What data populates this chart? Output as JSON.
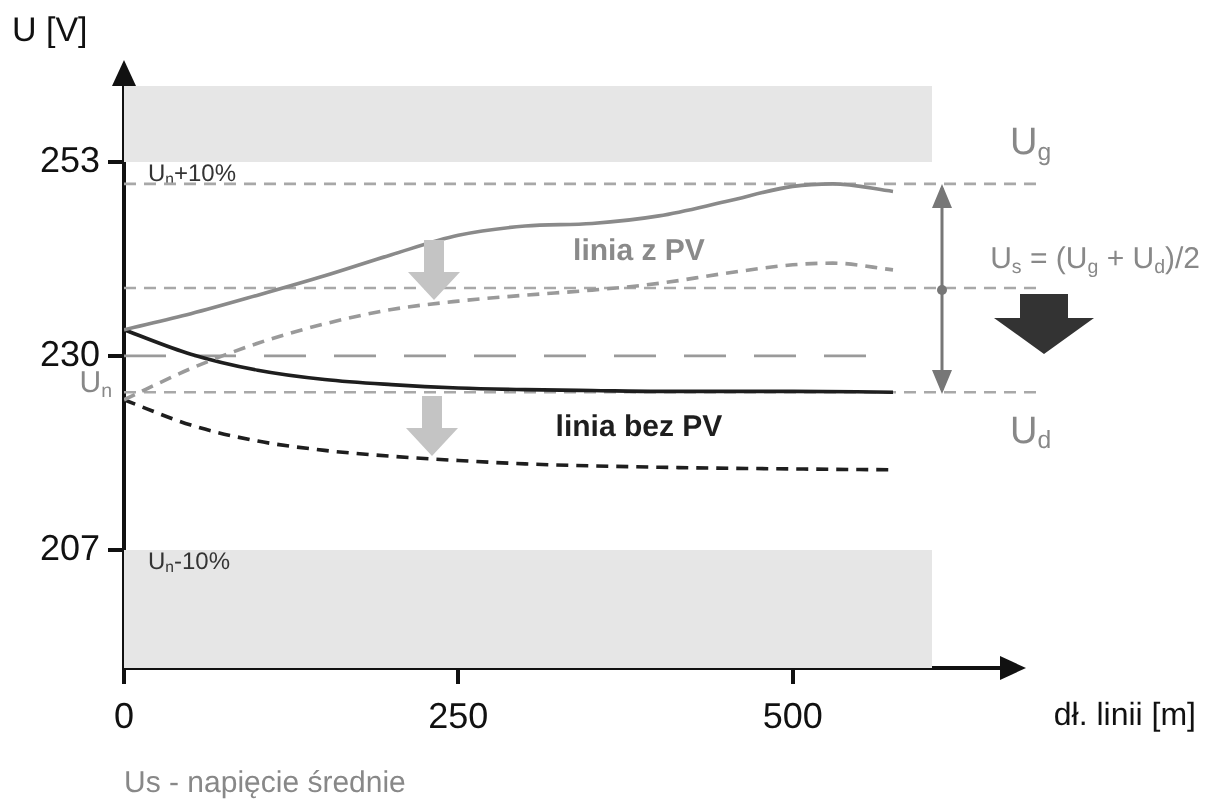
{
  "chart_data": {
    "type": "line",
    "ylabel": "U [V]",
    "xlabel": "dł. linii [m]",
    "xlim": [
      0,
      655
    ],
    "xticks": [
      0,
      250,
      500
    ],
    "ylim": [
      193,
      262
    ],
    "yticks": [
      207,
      230,
      253
    ],
    "grid": false,
    "legend": false,
    "marker": "none",
    "series": [
      {
        "name": "linia z PV",
        "color": "#8a8a8a",
        "line_style": "solid",
        "x": [
          0,
          50,
          100,
          150,
          200,
          250,
          300,
          350,
          400,
          450,
          500,
          530,
          575
        ],
        "values": [
          233.1,
          235,
          237.2,
          239.5,
          242,
          244.3,
          245.4,
          245.7,
          246.6,
          248.3,
          250.1,
          250.4,
          249.5
        ]
      },
      {
        "color": "#9a9a9a",
        "line_style": "dashed",
        "x": [
          0,
          50,
          100,
          150,
          200,
          250,
          300,
          350,
          400,
          450,
          500,
          530,
          575
        ],
        "values": [
          224.8,
          228.5,
          231.5,
          233.8,
          235.5,
          236.5,
          237.2,
          237.8,
          238.6,
          239.8,
          240.8,
          241,
          240.2
        ]
      },
      {
        "name": "linia bez PV",
        "color": "#1e1e1e",
        "line_style": "solid",
        "x": [
          0,
          50,
          100,
          150,
          200,
          250,
          300,
          350,
          400,
          450,
          500,
          575
        ],
        "values": [
          233.1,
          230.2,
          228.3,
          227.2,
          226.6,
          226.2,
          226,
          225.9,
          225.8,
          225.8,
          225.8,
          225.7
        ]
      },
      {
        "color": "#1e1e1e",
        "line_style": "dashed",
        "x": [
          0,
          50,
          100,
          150,
          200,
          250,
          300,
          400,
          500,
          575
        ],
        "values": [
          224.8,
          221.8,
          219.9,
          218.8,
          218.1,
          217.6,
          217.2,
          216.8,
          216.6,
          216.5
        ]
      }
    ],
    "bands": [
      {
        "axis": "y",
        "from": 253,
        "to": 262,
        "label": "U$_{n}$+10%",
        "color": "#e6e6e6"
      },
      {
        "axis": "y",
        "from": 193,
        "to": 207,
        "label": "U$_{n}$-10%",
        "color": "#e6e6e6"
      }
    ],
    "ref_lines": [
      {
        "axis": "y",
        "value": 230,
        "label": "U$_{n}$",
        "color": "#9a9a9a",
        "line_style": "dashed"
      },
      {
        "axis": "y",
        "value": 250.4,
        "label": "U$_{g}$",
        "color": "#a8a8a8",
        "line_style": "dashed"
      },
      {
        "axis": "y",
        "value": 225.7,
        "label": "U$_{d}$",
        "color": "#a8a8a8",
        "line_style": "dashed"
      },
      {
        "axis": "y",
        "value": 238.05,
        "label": "U$_{s}$ = (U$_{g}$ + U$_{d}$)/2",
        "color": "#a8a8a8",
        "line_style": "dashed"
      }
    ],
    "annotations": [
      "Us - napięcie średnie"
    ]
  }
}
